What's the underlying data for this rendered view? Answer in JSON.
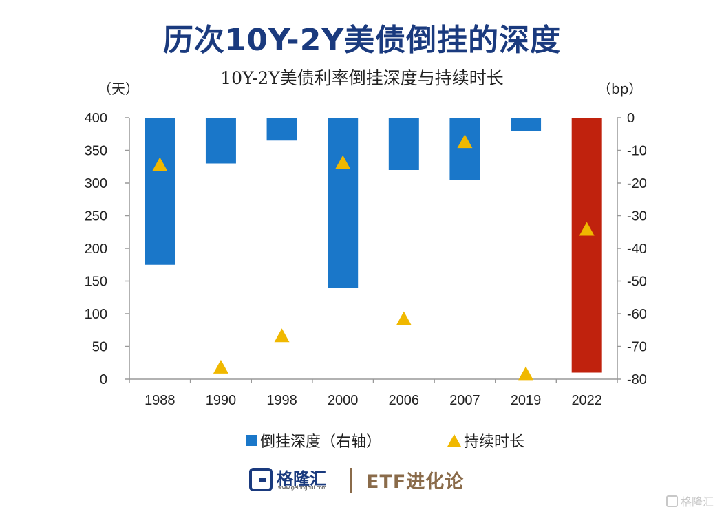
{
  "title": "历次10Y-2Y美债倒挂的深度",
  "subtitle": "10Y-2Y美债利率倒挂深度与持续时长",
  "colors": {
    "bar": "#1a77c9",
    "bar_highlight": "#c0220d",
    "marker": "#f0b800",
    "title": "#1a3a7e",
    "brand": "#8a6b4a"
  },
  "chart_data": {
    "type": "bar",
    "categories": [
      "1988",
      "1990",
      "1998",
      "2000",
      "2006",
      "2007",
      "2019",
      "2022"
    ],
    "series": [
      {
        "name": "倒挂深度（右轴）",
        "axis": "right",
        "type": "bar",
        "values": [
          -45,
          -14,
          -7,
          -52,
          -16,
          -19,
          -4,
          -78
        ],
        "highlight_index": 7
      },
      {
        "name": "持续时长",
        "axis": "left",
        "type": "scatter",
        "marker": "triangle",
        "values": [
          328,
          18,
          66,
          331,
          92,
          363,
          8,
          229
        ]
      }
    ],
    "y_left": {
      "label": "（天）",
      "lim": [
        0,
        400
      ],
      "ticks": [
        "400",
        "350",
        "300",
        "250",
        "200",
        "150",
        "100",
        "50",
        "0"
      ]
    },
    "y_right": {
      "label": "（bp）",
      "lim": [
        -80,
        0
      ],
      "ticks": [
        "0",
        "-10",
        "-20",
        "-30",
        "-40",
        "-50",
        "-60",
        "-70",
        "-80"
      ]
    },
    "legend_position": "bottom",
    "grid": false
  },
  "footer": {
    "logo_text": "格隆汇",
    "logo_url": "www.gelonghui.com",
    "brand": "ETF进化论"
  },
  "watermark": "格隆汇"
}
